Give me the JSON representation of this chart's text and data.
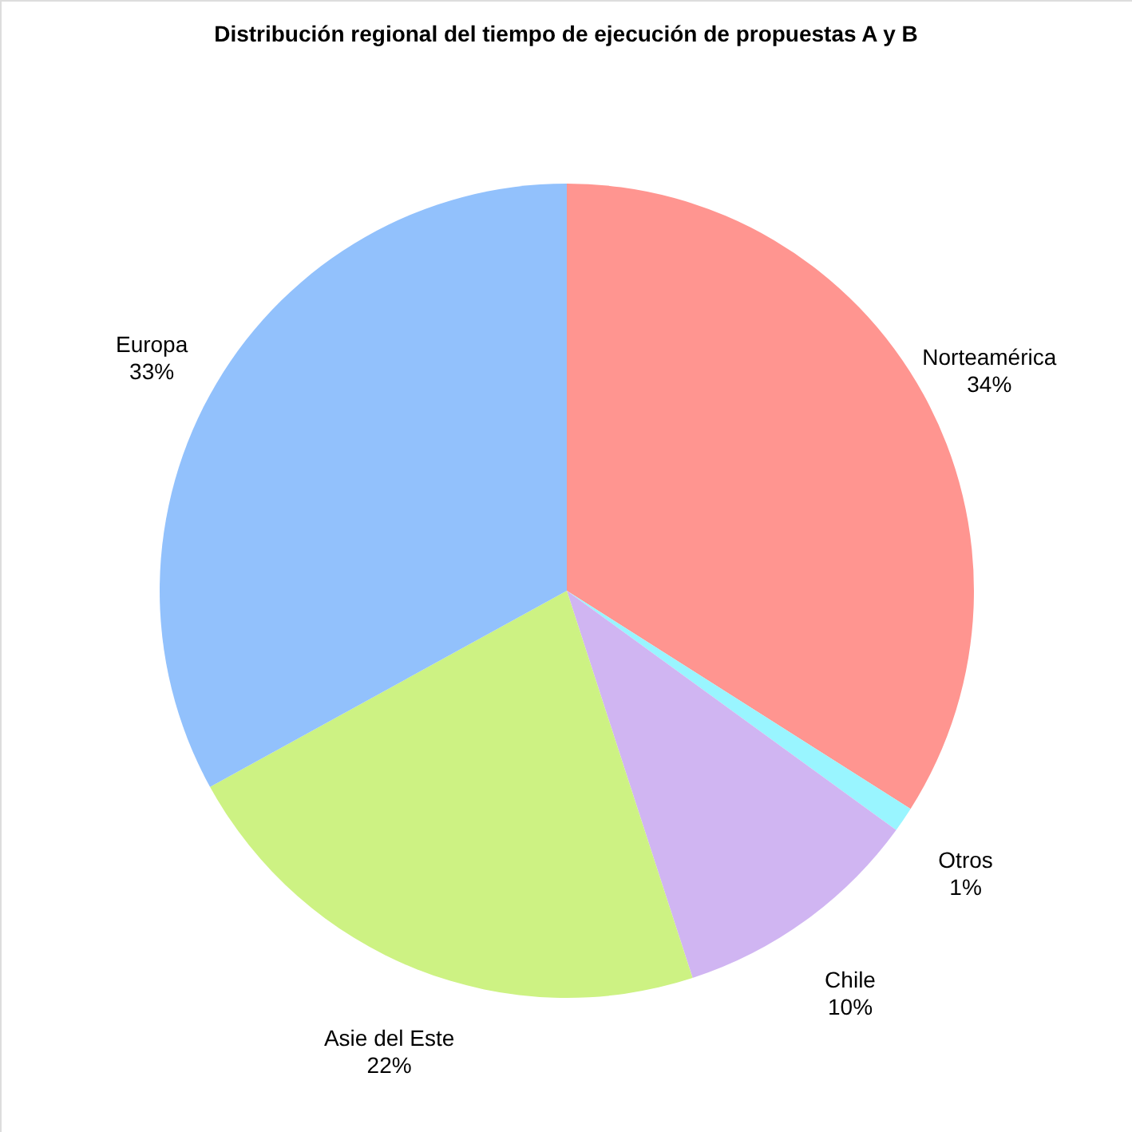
{
  "chart_data": {
    "type": "pie",
    "title": "Distribución regional del tiempo de ejecución de propuestas A y B",
    "categories": [
      "Norteamérica",
      "Otros",
      "Chile",
      "Asie del Este",
      "Europa"
    ],
    "values": [
      34,
      1,
      10,
      22,
      33
    ],
    "value_labels": [
      "34%",
      "1%",
      "10%",
      "22%",
      "33%"
    ],
    "colors": [
      "#ff9590",
      "#99f5ff",
      "#d0b5f2",
      "#cdf283",
      "#92c1fc"
    ]
  }
}
